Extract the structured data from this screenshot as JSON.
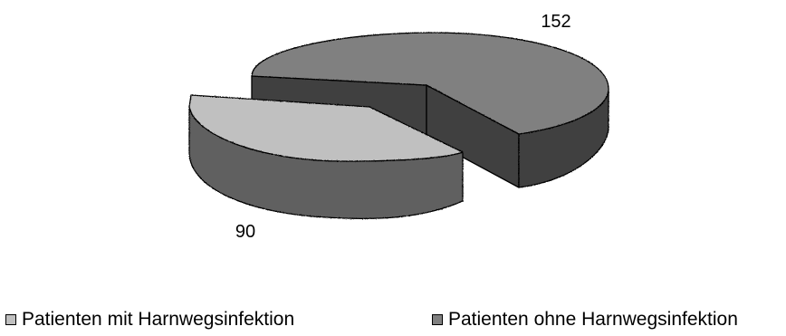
{
  "chart_data": {
    "type": "pie",
    "style": "3d-exploded",
    "categories": [
      "Patienten mit Harnwegsinfektion",
      "Patienten ohne Harnwegsinfektion"
    ],
    "values": [
      90,
      152
    ],
    "data_labels": [
      "90",
      "152"
    ],
    "colors": {
      "mit": "#c0c0c0",
      "ohne": "#808080"
    },
    "legend_position": "bottom",
    "title": ""
  }
}
